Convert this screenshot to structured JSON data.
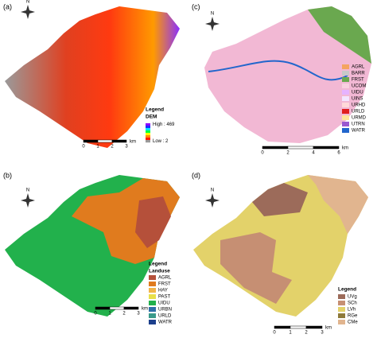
{
  "panels": [
    {
      "label": "(a)",
      "north": "N",
      "legend_title": "Legend",
      "legend_subtitle": "DEM",
      "legend_items": [
        {
          "label": "High : 469"
        },
        {
          "label": "Low : 2"
        }
      ],
      "legend_gradient": [
        "#8a00ff",
        "#1e2dff",
        "#00e5ff",
        "#00ff40",
        "#ffff00",
        "#ff8a00",
        "#ff1a00",
        "#9a9a9a"
      ],
      "scale": {
        "ticks": [
          "0",
          "1",
          "2",
          "3"
        ],
        "unit": "km"
      }
    },
    {
      "label": "(b)",
      "north": "N",
      "legend_title": "Legend",
      "legend_subtitle": "Landuse",
      "legend_items": [
        {
          "label": "AGRL",
          "color": "#b5503a"
        },
        {
          "label": "FRST",
          "color": "#e07b1e"
        },
        {
          "label": "HAY",
          "color": "#f2b54a"
        },
        {
          "label": "PAST",
          "color": "#e8e04a"
        },
        {
          "label": "UIDU",
          "color": "#22b14c"
        },
        {
          "label": "URBN",
          "color": "#2f6fa8"
        },
        {
          "label": "URLD",
          "color": "#3a9a8a"
        },
        {
          "label": "WATR",
          "color": "#1c3f8c"
        }
      ],
      "scale": {
        "ticks": [
          "0",
          "1",
          "2",
          "3"
        ],
        "unit": "km"
      }
    },
    {
      "label": "(c)",
      "north": "N",
      "legend_items": [
        {
          "label": "AGRL",
          "color": "#f4a460"
        },
        {
          "label": "BARR",
          "color": "#c8c8c8"
        },
        {
          "label": "FRST",
          "color": "#6aa84f"
        },
        {
          "label": "UCOM",
          "color": "#f9d0e0"
        },
        {
          "label": "UIDU",
          "color": "#e6b3ff"
        },
        {
          "label": "UINS",
          "color": "#f3e6ff"
        },
        {
          "label": "URHD",
          "color": "#ffd9d9"
        },
        {
          "label": "URLD",
          "color": "#e01e1e"
        },
        {
          "label": "URMD",
          "color": "#ffe599"
        },
        {
          "label": "UTRN",
          "color": "#9b59d0"
        },
        {
          "label": "WATR",
          "color": "#2266cc"
        }
      ],
      "scale": {
        "ticks": [
          "0",
          "2",
          "4",
          "6"
        ],
        "unit": "km"
      }
    },
    {
      "label": "(d)",
      "north": "N",
      "legend_title": "Legend",
      "legend_items": [
        {
          "label": "UVg",
          "color": "#9c6b5a"
        },
        {
          "label": "SCh",
          "color": "#c68f73"
        },
        {
          "label": "LVh",
          "color": "#e3d26a"
        },
        {
          "label": "RGe",
          "color": "#8e7a3a"
        },
        {
          "label": "CMe",
          "color": "#e1b58f"
        }
      ],
      "scale": {
        "ticks": [
          "0",
          "1",
          "2",
          "3"
        ],
        "unit": "km"
      }
    }
  ]
}
